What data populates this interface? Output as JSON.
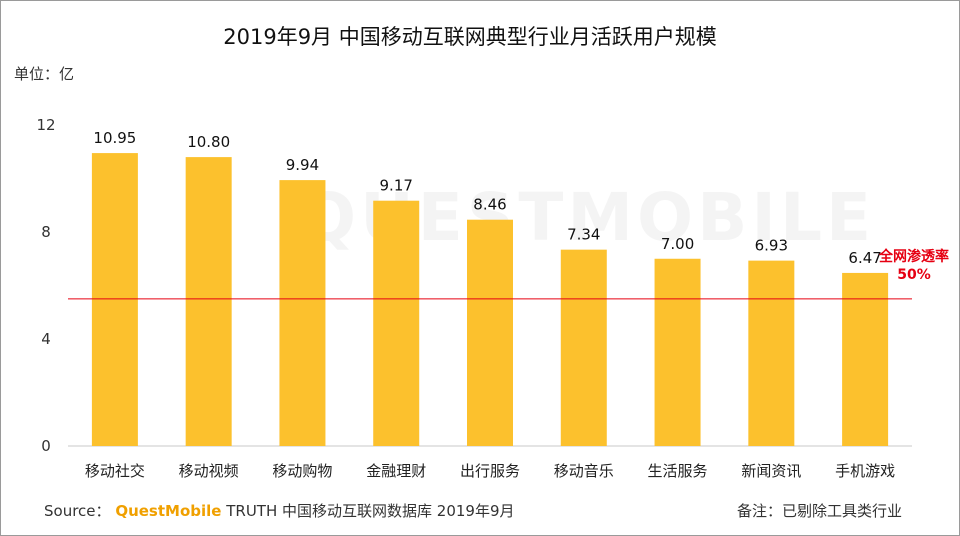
{
  "chart_data": {
    "type": "bar",
    "title": "2019年9月 中国移动互联网典型行业月活跃用户规模",
    "unit_label": "单位：亿",
    "categories": [
      "移动社交",
      "移动视频",
      "移动购物",
      "金融理财",
      "出行服务",
      "移动音乐",
      "生活服务",
      "新闻资讯",
      "手机游戏"
    ],
    "values": [
      10.95,
      10.8,
      9.94,
      9.17,
      8.46,
      7.34,
      7.0,
      6.93,
      6.47
    ],
    "value_labels": [
      "10.95",
      "10.80",
      "9.94",
      "9.17",
      "8.46",
      "7.34",
      "7.00",
      "6.93",
      "6.47"
    ],
    "ylim": [
      0,
      12
    ],
    "yticks": [
      0,
      4,
      8,
      12
    ],
    "xlabel": "",
    "ylabel": "",
    "bar_color": "#fcc12d",
    "reference_line": {
      "value": 5.5,
      "label_line1": "全网渗透率",
      "label_line2": "50%",
      "color": "#e60012"
    },
    "watermark": "QUESTMOBILE"
  },
  "footer": {
    "source_prefix": "Source：",
    "brand": "QuestMobile",
    "source_rest": "TRUTH 中国移动互联网数据库 2019年9月",
    "note": "备注：已剔除工具类行业"
  }
}
